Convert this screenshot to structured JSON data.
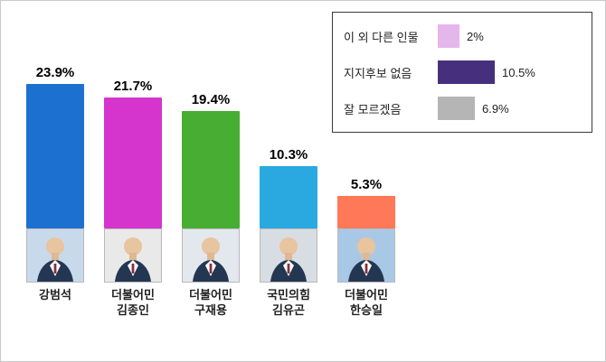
{
  "frame": {
    "background": "#ffffff",
    "border_color": "#c9c9c9"
  },
  "chart_data": {
    "type": "bar",
    "title": "",
    "xlabel": "",
    "ylabel": "",
    "ylim": [
      0,
      26
    ],
    "grid": false,
    "legend_position": "top-right",
    "categories": [
      "강범석",
      "더불어민 김종인",
      "더불어민 구재용",
      "국민의힘 김유곤",
      "더불어민 한승일"
    ],
    "values": [
      23.9,
      21.7,
      19.4,
      10.3,
      5.3
    ],
    "bars": [
      {
        "value": 23.9,
        "value_label": "23.9%",
        "color": "#1c70d0",
        "name_lines": [
          "강범석"
        ],
        "photo_bg": "#c9d9ec"
      },
      {
        "value": 21.7,
        "value_label": "21.7%",
        "color": "#d535cc",
        "name_lines": [
          "더불어민",
          "김종인"
        ],
        "photo_bg": "#e9e9e9"
      },
      {
        "value": 19.4,
        "value_label": "19.4%",
        "color": "#47ad33",
        "name_lines": [
          "더불어민",
          "구재용"
        ],
        "photo_bg": "#e3e8ee"
      },
      {
        "value": 10.3,
        "value_label": "10.3%",
        "color": "#2aa9e0",
        "name_lines": [
          "국민의힘",
          "김유곤"
        ],
        "photo_bg": "#d7dde3"
      },
      {
        "value": 5.3,
        "value_label": "5.3%",
        "color": "#ff7857",
        "name_lines": [
          "더불어민",
          "한승일"
        ],
        "photo_bg": "#a9c8e6"
      }
    ],
    "legend": [
      {
        "label": "이 외 다른 인물",
        "value": 2,
        "value_label": "2%",
        "color": "#e5b6eb"
      },
      {
        "label": "지지후보 없음",
        "value": 10.5,
        "value_label": "10.5%",
        "color": "#46307e"
      },
      {
        "label": "잘 모르겠음",
        "value": 6.9,
        "value_label": "6.9%",
        "color": "#b5b5b5"
      }
    ]
  }
}
